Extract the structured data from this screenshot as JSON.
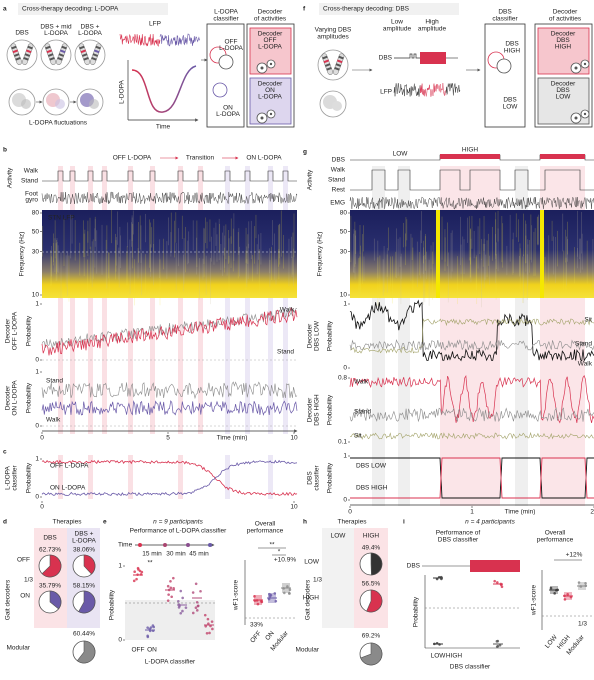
{
  "a": {
    "letter": "a",
    "title": "Cross-therapy decoding: L-DOPA",
    "therapies": [
      [
        "DBS"
      ],
      [
        "DBS + mid",
        "L-DOPA"
      ],
      [
        "DBS +",
        "L-DOPA"
      ]
    ],
    "fluctuations": "L-DOPA fluctuations",
    "lfp": "LFP",
    "ldopa": "L-DOPA",
    "time": "Time",
    "classifier": [
      "L-DOPA",
      "classifier"
    ],
    "off": [
      "OFF",
      "L-DOPA"
    ],
    "on": [
      "ON",
      "L-DOPA"
    ],
    "decoder": [
      "Decoder",
      "of activities"
    ],
    "dec_off": [
      "Decoder",
      "OFF",
      "L-DOPA"
    ],
    "dec_on": [
      "Decoder",
      "ON",
      "L-DOPA"
    ]
  },
  "b": {
    "letter": "b",
    "phases": [
      "OFF L-DOPA",
      "Transition",
      "ON L-DOPA"
    ],
    "activity": "Activity",
    "walk": "Walk",
    "stand": "Stand",
    "gyro": [
      "Foot",
      "gyro"
    ],
    "stn": "STN LFP",
    "freq_label": "Frequency (Hz)",
    "freq_ticks": [
      80,
      50,
      30,
      10
    ],
    "dec_off": [
      "Decoder",
      "OFF L-DOPA"
    ],
    "prob_off": "Probability",
    "off_ticks": [
      1,
      0
    ],
    "off_labels": [
      "Walk",
      "Stand"
    ],
    "dec_on": [
      "Decoder",
      "ON L-DOPA"
    ],
    "prob_on": "Probability",
    "on_ticks": [
      1,
      0
    ],
    "on_labels": [
      "Stand",
      "Walk"
    ],
    "time_ticks": [
      0,
      5,
      10
    ],
    "time_label": "Time (min)"
  },
  "c": {
    "letter": "c",
    "ylabel": [
      "L-DOPA",
      "classifier"
    ],
    "prob": "Probability",
    "ticks": [
      1,
      0
    ],
    "off": "OFF L-DOPA",
    "on": "ON L-DOPA",
    "xticks": [
      0,
      10
    ]
  },
  "d": {
    "letter": "d",
    "therapies": "Therapies",
    "columns": [
      [
        "DBS"
      ],
      [
        "DBS +",
        "L-DOPA"
      ]
    ],
    "rows": [
      "OFF",
      "ON",
      "Modular"
    ],
    "ylabel": "Gait decoders",
    "pies": [
      {
        "value": 62.73,
        "label": "62.73%"
      },
      {
        "value": 38.06,
        "label": "38.06%"
      },
      {
        "value": 35.79,
        "label": "35.79%"
      },
      {
        "value": 58.15,
        "label": "58.15%"
      },
      {
        "value": 60.44,
        "label": "60.44%"
      }
    ],
    "third": "1/3"
  },
  "e": {
    "letter": "e",
    "n": "n = 9 participants",
    "title": "Performance of L-DOPA classifier",
    "time": "Time",
    "intervals": [
      "15 min",
      "30 min",
      "45 min"
    ],
    "prob": "Probability",
    "yticks": [
      1,
      0
    ],
    "sig": "**",
    "xcats": [
      "OFF",
      "ON"
    ],
    "xlabel": "L-DOPA classifier",
    "overall": [
      "Overall",
      "performance"
    ],
    "wf1": "wF1-score",
    "sig2": [
      "**",
      "*",
      "+10.9%"
    ],
    "chance": "33%",
    "ocats": [
      "OFF",
      "ON",
      "Modular"
    ]
  },
  "f": {
    "letter": "f",
    "title": "Cross-therapy decoding: DBS",
    "varying": [
      "Varying DBS",
      "amplitudes"
    ],
    "low": [
      "Low",
      "amplitude"
    ],
    "high": [
      "High",
      "amplitude"
    ],
    "dbs": "DBS",
    "lfp": "LFP",
    "classifier": [
      "DBS",
      "classifier"
    ],
    "high_cls": [
      "DBS",
      "HIGH"
    ],
    "low_cls": [
      "DBS",
      "LOW"
    ],
    "decoder": [
      "Decoder",
      "of activities"
    ],
    "dec_high": [
      "Decoder",
      "DBS",
      "HIGH"
    ],
    "dec_low": [
      "Decoder",
      "DBS",
      "LOW"
    ]
  },
  "g": {
    "letter": "g",
    "dbs": "DBS",
    "low": "LOW",
    "high": "HIGH",
    "activity": "Activity",
    "rows": [
      "Walk",
      "Stand",
      "Rest"
    ],
    "emg": "EMG",
    "freq_label": "Frequency (Hz)",
    "freq_ticks": [
      80,
      50,
      30,
      10
    ],
    "dec_low": [
      "Decoder",
      "DBS LOW"
    ],
    "prob_low": "Probability",
    "low_ticks": [
      1,
      0
    ],
    "low_labels": [
      "Sit",
      "Stand",
      "Walk"
    ],
    "dec_high": [
      "Decoder",
      "DBS HIGH"
    ],
    "prob_high": "Probability",
    "high_ticks": [
      0.8,
      0.1
    ],
    "high_labels": [
      "Walk",
      "Stand",
      "Sit"
    ],
    "cls": [
      "DBS",
      "classifier"
    ],
    "prob_cls": "Probability",
    "cls_ticks": [
      1,
      0
    ],
    "cls_labels": [
      "DBS LOW",
      "DBS HIGH"
    ],
    "xticks": [
      0,
      1,
      2
    ],
    "time_label": "Time (min)"
  },
  "h": {
    "letter": "h",
    "therapies": "Therapies",
    "columns": [
      "LOW",
      "HIGH"
    ],
    "rows": [
      "LOW",
      "HIGH",
      "Modular"
    ],
    "ylabel": "Gait decoders",
    "pies": [
      {
        "value": 49.4,
        "label": "49.4%"
      },
      {
        "value": 56.5,
        "label": "56.5%"
      },
      {
        "value": 69.2,
        "label": "69.2%"
      }
    ],
    "third": "1/3"
  },
  "i": {
    "letter": "i",
    "n": "n = 4 participants",
    "title": [
      "Performance of",
      "DBS classifier"
    ],
    "overall": [
      "Overall",
      "performance"
    ],
    "dbs": "DBS",
    "prob": "Probability",
    "wf1": "wF1-score",
    "xcats": [
      "LOW",
      "HIGH"
    ],
    "xlabel": "DBS classifier",
    "plus": "+12%",
    "third": "1/3",
    "ocats": [
      "LOW",
      "HIGH",
      "Modular"
    ]
  }
}
